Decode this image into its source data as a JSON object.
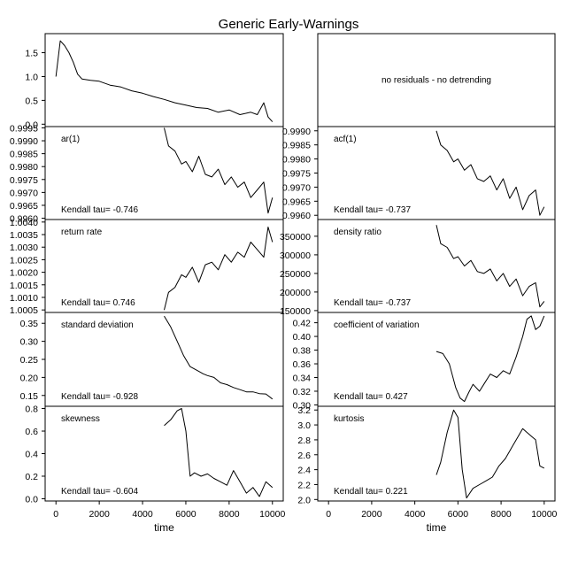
{
  "figure": {
    "title": "Generic Early-Warnings",
    "xlabel": "time",
    "x_ticks": [
      0,
      2000,
      4000,
      6000,
      8000,
      10000
    ],
    "xlim": [
      -500,
      10500
    ]
  },
  "chart_data": [
    {
      "id": "series",
      "type": "line",
      "label": "",
      "kendall": "",
      "ylim": [
        -0.05,
        1.9
      ],
      "y_ticks": [
        0.0,
        0.5,
        1.0,
        1.5
      ],
      "y_tick_labels": [
        "0.0",
        "0.5",
        "1.0",
        "1.5"
      ],
      "x": [
        0,
        200,
        400,
        600,
        800,
        1000,
        1200,
        1600,
        2000,
        2500,
        3000,
        3500,
        4000,
        4500,
        5000,
        5500,
        6000,
        6500,
        7000,
        7500,
        8000,
        8500,
        9000,
        9300,
        9600,
        9800,
        10000
      ],
      "y": [
        1.0,
        1.75,
        1.65,
        1.5,
        1.3,
        1.05,
        0.95,
        0.92,
        0.9,
        0.82,
        0.78,
        0.7,
        0.65,
        0.58,
        0.52,
        0.45,
        0.4,
        0.35,
        0.33,
        0.25,
        0.3,
        0.2,
        0.25,
        0.2,
        0.45,
        0.15,
        0.05
      ]
    },
    {
      "id": "no-detrending",
      "type": "text",
      "note": "no residuals - no detrending"
    },
    {
      "id": "ar1",
      "type": "line",
      "label": "ar(1)",
      "kendall": "Kendall tau= -0.746",
      "ylim": [
        0.99595,
        0.99955
      ],
      "y_ticks": [
        0.996,
        0.9965,
        0.997,
        0.9975,
        0.998,
        0.9985,
        0.999,
        0.9995
      ],
      "y_tick_labels": [
        "0.9960",
        "0.9965",
        "0.9970",
        "0.9975",
        "0.9980",
        "0.9985",
        "0.9990",
        "0.9995"
      ],
      "x": [
        5000,
        5200,
        5500,
        5800,
        6000,
        6300,
        6600,
        6900,
        7200,
        7500,
        7800,
        8100,
        8400,
        8700,
        9000,
        9300,
        9600,
        9800,
        10000
      ],
      "y": [
        0.9995,
        0.9988,
        0.9986,
        0.9981,
        0.9982,
        0.9978,
        0.9984,
        0.9977,
        0.9976,
        0.9979,
        0.9973,
        0.9976,
        0.9972,
        0.9974,
        0.9968,
        0.9971,
        0.9974,
        0.9962,
        0.9968
      ]
    },
    {
      "id": "acf1",
      "type": "line",
      "label": "acf(1)",
      "kendall": "Kendall tau= -0.737",
      "ylim": [
        0.99585,
        0.99915
      ],
      "y_ticks": [
        0.996,
        0.9965,
        0.997,
        0.9975,
        0.998,
        0.9985,
        0.999
      ],
      "y_tick_labels": [
        "0.9960",
        "0.9965",
        "0.9970",
        "0.9975",
        "0.9980",
        "0.9985",
        "0.9990"
      ],
      "x": [
        5000,
        5200,
        5500,
        5800,
        6000,
        6300,
        6600,
        6900,
        7200,
        7500,
        7800,
        8100,
        8400,
        8700,
        9000,
        9300,
        9600,
        9800,
        10000
      ],
      "y": [
        0.999,
        0.9985,
        0.9983,
        0.9979,
        0.998,
        0.9976,
        0.9978,
        0.9973,
        0.9972,
        0.9974,
        0.9969,
        0.9973,
        0.9966,
        0.997,
        0.9962,
        0.9967,
        0.9969,
        0.996,
        0.9963
      ]
    },
    {
      "id": "return-rate",
      "type": "line",
      "label": "return rate",
      "kendall": "Kendall tau= 0.746",
      "ylim": [
        1.0004,
        1.0041
      ],
      "y_ticks": [
        1.0005,
        1.001,
        1.0015,
        1.002,
        1.0025,
        1.003,
        1.0035,
        1.004
      ],
      "y_tick_labels": [
        "1.0005",
        "1.0010",
        "1.0015",
        "1.0020",
        "1.0025",
        "1.0030",
        "1.0035",
        "1.0040"
      ],
      "x": [
        5000,
        5200,
        5500,
        5800,
        6000,
        6300,
        6600,
        6900,
        7200,
        7500,
        7800,
        8100,
        8400,
        8700,
        9000,
        9300,
        9600,
        9800,
        10000
      ],
      "y": [
        1.0005,
        1.0012,
        1.0014,
        1.0019,
        1.0018,
        1.0022,
        1.0016,
        1.0023,
        1.0024,
        1.0021,
        1.0027,
        1.0024,
        1.0028,
        1.0026,
        1.0032,
        1.0029,
        1.0026,
        1.0038,
        1.0032
      ]
    },
    {
      "id": "density-ratio",
      "type": "line",
      "label": "density ratio",
      "kendall": "Kendall tau= -0.737",
      "ylim": [
        145000,
        395000
      ],
      "y_ticks": [
        150000,
        200000,
        250000,
        300000,
        350000
      ],
      "y_tick_labels": [
        "150000",
        "200000",
        "250000",
        "300000",
        "350000"
      ],
      "x": [
        5000,
        5200,
        5500,
        5800,
        6000,
        6300,
        6600,
        6900,
        7200,
        7500,
        7800,
        8100,
        8400,
        8700,
        9000,
        9300,
        9600,
        9800,
        10000
      ],
      "y": [
        380000,
        330000,
        320000,
        290000,
        295000,
        270000,
        285000,
        255000,
        250000,
        262000,
        230000,
        250000,
        215000,
        235000,
        190000,
        215000,
        225000,
        160000,
        175000
      ]
    },
    {
      "id": "sd",
      "type": "line",
      "label": "standard deviation",
      "kendall": "Kendall tau= -0.928",
      "ylim": [
        0.12,
        0.38
      ],
      "y_ticks": [
        0.15,
        0.2,
        0.25,
        0.3,
        0.35
      ],
      "y_tick_labels": [
        "0.15",
        "0.20",
        "0.25",
        "0.30",
        "0.35"
      ],
      "x": [
        5000,
        5300,
        5600,
        5900,
        6200,
        6500,
        6800,
        7000,
        7300,
        7600,
        7900,
        8200,
        8500,
        8800,
        9100,
        9400,
        9700,
        10000
      ],
      "y": [
        0.37,
        0.34,
        0.3,
        0.26,
        0.23,
        0.22,
        0.21,
        0.205,
        0.2,
        0.185,
        0.18,
        0.172,
        0.166,
        0.16,
        0.16,
        0.155,
        0.154,
        0.14
      ]
    },
    {
      "id": "cv",
      "type": "line",
      "label": "coefficient of variation",
      "kendall": "Kendall tau= 0.427",
      "ylim": [
        0.298,
        0.435
      ],
      "y_ticks": [
        0.3,
        0.32,
        0.34,
        0.36,
        0.38,
        0.4,
        0.42
      ],
      "y_tick_labels": [
        "0.30",
        "0.32",
        "0.34",
        "0.36",
        "0.38",
        "0.40",
        "0.42"
      ],
      "x": [
        5000,
        5300,
        5600,
        5900,
        6100,
        6300,
        6500,
        6700,
        7000,
        7200,
        7500,
        7800,
        8100,
        8400,
        8700,
        9000,
        9200,
        9400,
        9600,
        9800,
        10000
      ],
      "y": [
        0.378,
        0.375,
        0.36,
        0.325,
        0.31,
        0.305,
        0.318,
        0.33,
        0.32,
        0.33,
        0.345,
        0.34,
        0.35,
        0.345,
        0.37,
        0.4,
        0.425,
        0.43,
        0.41,
        0.415,
        0.43
      ]
    },
    {
      "id": "skewness",
      "type": "line",
      "label": "skewness",
      "kendall": "Kendall tau= -0.604",
      "ylim": [
        -0.02,
        0.82
      ],
      "y_ticks": [
        0.0,
        0.2,
        0.4,
        0.6,
        0.8
      ],
      "y_tick_labels": [
        "0.0",
        "0.2",
        "0.4",
        "0.6",
        "0.8"
      ],
      "x": [
        5000,
        5300,
        5600,
        5800,
        6000,
        6200,
        6400,
        6700,
        7000,
        7300,
        7600,
        7900,
        8200,
        8500,
        8800,
        9100,
        9400,
        9700,
        10000
      ],
      "y": [
        0.65,
        0.7,
        0.78,
        0.8,
        0.6,
        0.2,
        0.23,
        0.2,
        0.22,
        0.18,
        0.15,
        0.12,
        0.25,
        0.15,
        0.05,
        0.1,
        0.02,
        0.15,
        0.1
      ]
    },
    {
      "id": "kurtosis",
      "type": "line",
      "label": "kurtosis",
      "kendall": "Kendall tau= 0.221",
      "ylim": [
        1.98,
        3.25
      ],
      "y_ticks": [
        2.0,
        2.2,
        2.4,
        2.6,
        2.8,
        3.0,
        3.2
      ],
      "y_tick_labels": [
        "2.0",
        "2.2",
        "2.4",
        "2.6",
        "2.8",
        "3.0",
        "3.2"
      ],
      "x": [
        5000,
        5200,
        5500,
        5800,
        6000,
        6200,
        6400,
        6700,
        7000,
        7300,
        7600,
        7900,
        8200,
        8500,
        8800,
        9000,
        9200,
        9400,
        9600,
        9800,
        10000
      ],
      "y": [
        2.33,
        2.5,
        2.9,
        3.2,
        3.1,
        2.4,
        2.02,
        2.15,
        2.2,
        2.25,
        2.3,
        2.45,
        2.55,
        2.7,
        2.85,
        2.95,
        2.9,
        2.85,
        2.8,
        2.45,
        2.42
      ]
    }
  ]
}
